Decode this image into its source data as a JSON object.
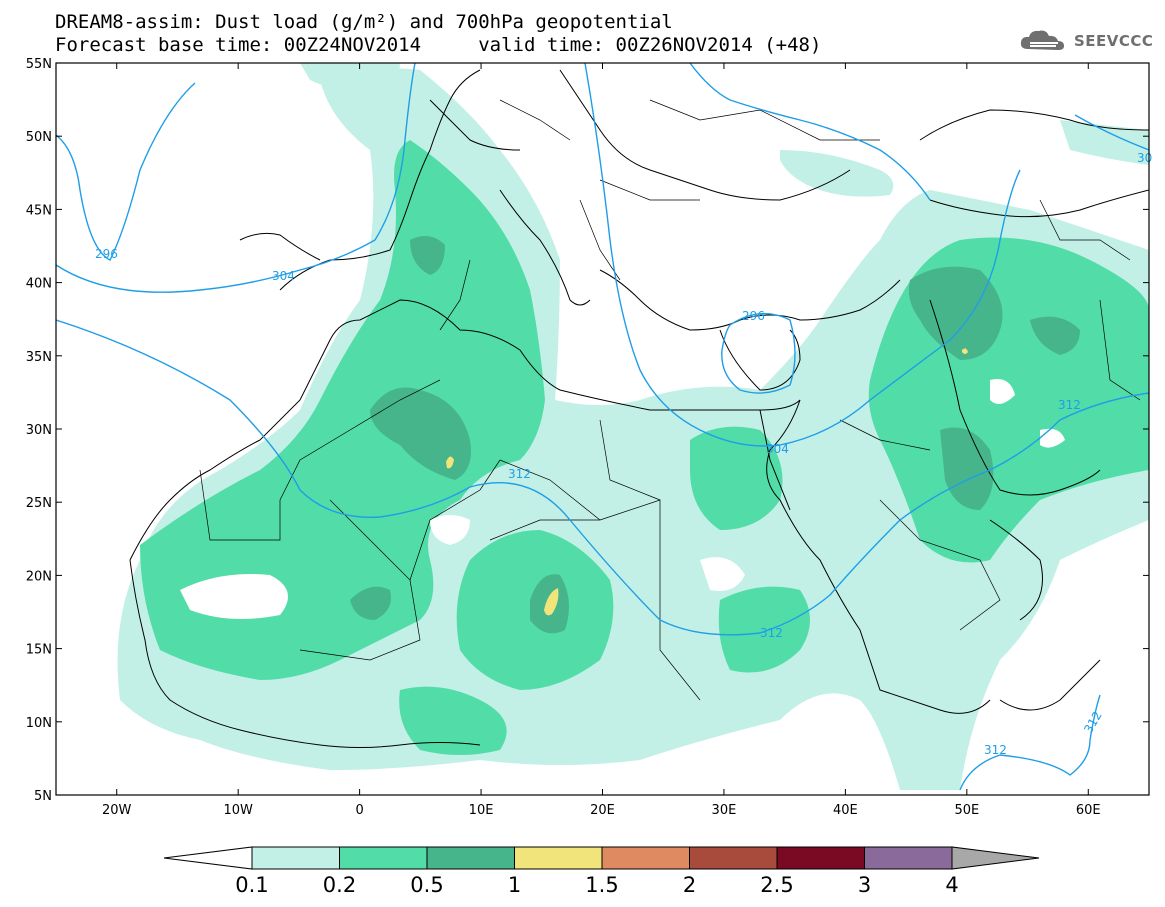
{
  "title": {
    "line1": "DREAM8-assim: Dust load (g/m²) and 700hPa geopotential",
    "line2": "Forecast base time: 00Z24NOV2014     valid time: 00Z26NOV2014 (+48)"
  },
  "logo": {
    "text": "SEEVCCC",
    "icon": "cloud-icon"
  },
  "map": {
    "lon_range": [
      -25,
      65
    ],
    "lat_range": [
      5,
      55
    ],
    "lat_ticks": [
      "5N",
      "10N",
      "15N",
      "20N",
      "25N",
      "30N",
      "35N",
      "40N",
      "45N",
      "50N",
      "55N"
    ],
    "lon_ticks": [
      "20W",
      "10W",
      "0",
      "10E",
      "20E",
      "30E",
      "40E",
      "50E",
      "60E"
    ],
    "contour_labels": [
      "296",
      "304",
      "296",
      "304",
      "312",
      "312",
      "312",
      "312",
      "312",
      "30"
    ]
  },
  "colorbar": {
    "levels": [
      "0.1",
      "0.2",
      "0.5",
      "1",
      "1.5",
      "2",
      "2.5",
      "3",
      "4"
    ],
    "colors": [
      "#c2f0e6",
      "#52dca8",
      "#47b58c",
      "#f0e47a",
      "#e08a62",
      "#a84a3c",
      "#7a0a24",
      "#8a6a9a"
    ],
    "under_color": "#ffffff",
    "over_color": "#a8a8a8"
  },
  "colors": {
    "contour": "#1f9ee8",
    "border": "#000000"
  }
}
